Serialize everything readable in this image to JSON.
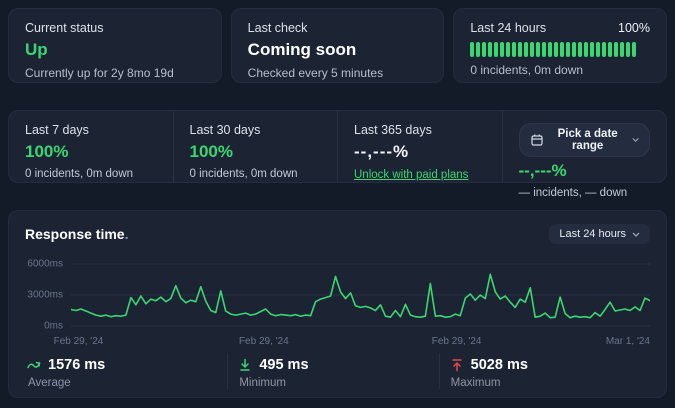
{
  "colors": {
    "accent_green": "#3bd671",
    "accent_red": "#e5484d",
    "card_bg": "#1c2434",
    "page_bg": "#131a28"
  },
  "topcards": {
    "status": {
      "label": "Current status",
      "value": "Up",
      "sub": "Currently up for 2y 8mo 19d"
    },
    "last_check": {
      "label": "Last check",
      "value": "Coming soon",
      "sub": "Checked every 5 minutes"
    },
    "last24": {
      "label": "Last 24 hours",
      "percent": "100%",
      "sub": "0 incidents, 0m down",
      "bar_count": 28
    }
  },
  "uptime": {
    "cols": [
      {
        "label": "Last 7 days",
        "value": "100%",
        "sub": "0 incidents, 0m down"
      },
      {
        "label": "Last 30 days",
        "value": "100%",
        "sub": "0 incidents, 0m down"
      },
      {
        "label": "Last 365 days",
        "value": "--,---%",
        "link": "Unlock with paid plans"
      },
      {
        "button": "Pick a date range",
        "value": "--,---%",
        "sub": "— incidents, — down"
      }
    ]
  },
  "response": {
    "title": "Response time",
    "title_period": ".",
    "range_button": "Last 24 hours",
    "stats": [
      {
        "value": "1576 ms",
        "label": "Average"
      },
      {
        "value": "495 ms",
        "label": "Minimum"
      },
      {
        "value": "5028 ms",
        "label": "Maximum"
      }
    ]
  },
  "chart_data": {
    "type": "line",
    "title": "Response time",
    "series_name": "Response time (ms)",
    "ylabel": "ms",
    "ylim": [
      0,
      6000
    ],
    "yticks": [
      "6000ms",
      "3000ms",
      "0ms"
    ],
    "x_labels": [
      "Feb 29, '24",
      "Feb 29, '24",
      "Feb 29, '24",
      "Mar 1, '24"
    ],
    "range": "Last 24 hours",
    "grid": true,
    "legend": false,
    "summary": {
      "average_ms": 1576,
      "minimum_ms": 495,
      "maximum_ms": 5028
    },
    "values": [
      1600,
      1500,
      1650,
      1450,
      1250,
      1050,
      950,
      1050,
      900,
      1000,
      950,
      1050,
      2750,
      2050,
      2900,
      2150,
      2600,
      2450,
      2800,
      2350,
      2650,
      3900,
      2700,
      2250,
      2500,
      2350,
      3800,
      2400,
      1500,
      1300,
      3400,
      1450,
      1150,
      1050,
      1150,
      1250,
      1050,
      1150,
      1400,
      1650,
      1150,
      1000,
      1100,
      1050,
      1000,
      1100,
      950,
      1050,
      1000,
      2350,
      2600,
      2750,
      2900,
      4800,
      3300,
      2650,
      3200,
      1950,
      1800,
      1900,
      1750,
      1500,
      2050,
      950,
      850,
      1500,
      900,
      2100,
      1050,
      900,
      850,
      950,
      4100,
      950,
      1000,
      850,
      900,
      1150,
      1000,
      2700,
      3100,
      2500,
      3000,
      2650,
      5000,
      3300,
      2600,
      2900,
      2300,
      1800,
      2600,
      2300,
      3700,
      850,
      950,
      1250,
      800,
      850,
      2800,
      1200,
      800,
      950,
      850,
      900,
      800,
      1300,
      950,
      1600,
      2300,
      1450,
      1550,
      1650,
      1500,
      1850,
      1500,
      2700,
      2450
    ]
  }
}
